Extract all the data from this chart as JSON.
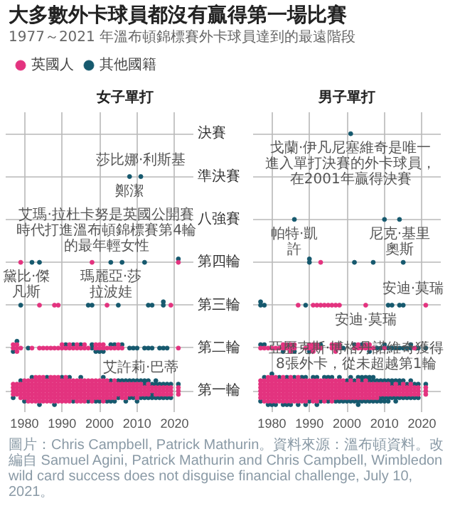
{
  "chart_data": [
    {
      "type": "scatter",
      "orientation": "horizontal",
      "title": "女子單打",
      "categories": [
        "決賽",
        "準決賽",
        "八強賽",
        "第四輪",
        "第三輪",
        "第二輪",
        "第一輪"
      ],
      "xlim": [
        1975,
        2025
      ],
      "xticks": [
        1980,
        1990,
        2000,
        2010,
        2020
      ],
      "grid": true,
      "legend": "top left",
      "marker": "circle",
      "series": [
        {
          "name": "英國人",
          "color": "#e3337f",
          "values": [
            1979,
            1998,
            2021,
            1984,
            1988,
            1989,
            2002,
            2019,
            1977,
            1977,
            1978,
            1978,
            1978,
            1979,
            1982,
            1984,
            1985,
            1986,
            1987,
            1988,
            1989,
            1990,
            1990,
            1991,
            1992,
            1992,
            1993,
            1994,
            1994,
            1995,
            1996,
            1996,
            1997,
            1999,
            1999,
            2000,
            2000,
            2001,
            2001,
            2002,
            2003,
            2004,
            2005,
            2005,
            2006,
            2021,
            1977,
            1977,
            1977,
            1977,
            1978,
            1978,
            1978,
            1978,
            1979,
            1979,
            1979,
            1979,
            1979,
            1980,
            1980,
            1980,
            1980,
            1980,
            1980,
            1981,
            1981,
            1981,
            1981,
            1981,
            1981,
            1981,
            1982,
            1982,
            1982,
            1982,
            1982,
            1982,
            1982,
            1983,
            1983,
            1983,
            1983,
            1983,
            1983,
            1983,
            1983,
            1984,
            1984,
            1984,
            1984,
            1984,
            1984,
            1984,
            1984,
            1985,
            1985,
            1985,
            1985,
            1985,
            1985,
            1985,
            1985,
            1986,
            1986,
            1986,
            1986,
            1986,
            1986,
            1986,
            1987,
            1987,
            1987,
            1987,
            1987,
            1987,
            1987,
            1987,
            1988,
            1988,
            1988,
            1988,
            1988,
            1988,
            1988,
            1988,
            1989,
            1989,
            1989,
            1989,
            1989,
            1989,
            1989,
            1989,
            1990,
            1990,
            1990,
            1990,
            1990,
            1990,
            1990,
            1991,
            1991,
            1991,
            1991,
            1991,
            1991,
            1991,
            1991,
            1992,
            1992,
            1992,
            1992,
            1992,
            1992,
            1992,
            1993,
            1993,
            1993,
            1993,
            1993,
            1993,
            1994,
            1994,
            1994,
            1994,
            1994,
            1994,
            1994,
            1995,
            1995,
            1995,
            1995,
            1995,
            1995,
            1995,
            1996,
            1996,
            1996,
            1996,
            1996,
            1996,
            1996,
            1997,
            1997,
            1997,
            1997,
            1997,
            1997,
            1998,
            1998,
            1998,
            1998,
            1998,
            1998,
            1998,
            1999,
            1999,
            1999,
            1999,
            1999,
            1999,
            2000,
            2000,
            2000,
            2000,
            2000,
            2000,
            2001,
            2001,
            2001,
            2001,
            2001,
            2001,
            2001,
            2002,
            2002,
            2002,
            2002,
            2002,
            2002,
            2003,
            2003,
            2003,
            2003,
            2003,
            2004,
            2004,
            2004,
            2004,
            2004,
            2004,
            2005,
            2005,
            2005,
            2005,
            2006,
            2006,
            2006,
            2006,
            2006,
            2007,
            2007,
            2007,
            2007,
            2007,
            2008,
            2008,
            2008,
            2008,
            2009,
            2009,
            2009,
            2009,
            2010,
            2010,
            2010,
            2010,
            2010,
            2011,
            2011,
            2011,
            2011,
            2012,
            2012,
            2012,
            2013,
            2013,
            2013,
            2013,
            2014,
            2014,
            2015,
            2015,
            2015,
            2016,
            2016,
            2016,
            2017,
            2017,
            2017,
            2018,
            2018,
            2018,
            2019,
            2019,
            2019,
            2021,
            2021,
            2021
          ],
          "x": [
            "第四輪",
            "第四輪",
            "第四輪",
            "第三輪",
            "第三輪",
            "第三輪",
            "第三輪",
            "第三輪",
            "第二輪",
            "第二輪",
            "第二輪",
            "第二輪",
            "第二輪",
            "第二輪",
            "第二輪",
            "第二輪",
            "第二輪",
            "第二輪",
            "第二輪",
            "第二輪",
            "第二輪",
            "第二輪",
            "第二輪",
            "第二輪",
            "第二輪",
            "第二輪",
            "第二輪",
            "第二輪",
            "第二輪",
            "第二輪",
            "第二輪",
            "第二輪",
            "第二輪",
            "第二輪",
            "第二輪",
            "第二輪",
            "第二輪",
            "第二輪",
            "第二輪",
            "第二輪",
            "第二輪",
            "第二輪",
            "第二輪",
            "第二輪",
            "第二輪",
            "第二輪",
            "第一輪",
            "第一輪",
            "第一輪",
            "第一輪",
            "第一輪",
            "第一輪",
            "第一輪",
            "第一輪",
            "第一輪",
            "第一輪",
            "第一輪",
            "第一輪",
            "第一輪",
            "第一輪",
            "第一輪",
            "第一輪",
            "第一輪",
            "第一輪",
            "第一輪",
            "第一輪",
            "第一輪",
            "第一輪",
            "第一輪",
            "第一輪",
            "第一輪",
            "第一輪",
            "第一輪",
            "第一輪",
            "第一輪",
            "第一輪",
            "第一輪",
            "第一輪",
            "第一輪",
            "第一輪",
            "第一輪",
            "第一輪",
            "第一輪",
            "第一輪",
            "第一輪",
            "第一輪",
            "第一輪",
            "第一輪",
            "第一輪",
            "第一輪",
            "第一輪",
            "第一輪",
            "第一輪",
            "第一輪",
            "第一輪",
            "第一輪",
            "第一輪",
            "第一輪",
            "第一輪",
            "第一輪",
            "第一輪",
            "第一輪",
            "第一輪",
            "第一輪",
            "第一輪",
            "第一輪",
            "第一輪",
            "第一輪",
            "第一輪",
            "第一輪",
            "第一輪",
            "第一輪",
            "第一輪",
            "第一輪",
            "第一輪",
            "第一輪",
            "第一輪",
            "第一輪",
            "第一輪",
            "第一輪",
            "第一輪",
            "第一輪",
            "第一輪",
            "第一輪",
            "第一輪",
            "第一輪",
            "第一輪",
            "第一輪",
            "第一輪",
            "第一輪",
            "第一輪",
            "第一輪",
            "第一輪",
            "第一輪",
            "第一輪",
            "第一輪",
            "第一輪",
            "第一輪",
            "第一輪",
            "第一輪",
            "第一輪",
            "第一輪",
            "第一輪",
            "第一輪",
            "第一輪",
            "第一輪",
            "第一輪",
            "第一輪",
            "第一輪",
            "第一輪",
            "第一輪",
            "第一輪",
            "第一輪",
            "第一輪",
            "第一輪",
            "第一輪",
            "第一輪",
            "第一輪",
            "第一輪",
            "第一輪",
            "第一輪",
            "第一輪",
            "第一輪",
            "第一輪",
            "第一輪",
            "第一輪",
            "第一輪",
            "第一輪",
            "第一輪",
            "第一輪",
            "第一輪",
            "第一輪",
            "第一輪",
            "第一輪",
            "第一輪",
            "第一輪",
            "第一輪",
            "第一輪",
            "第一輪",
            "第一輪",
            "第一輪",
            "第一輪",
            "第一輪",
            "第一輪",
            "第一輪",
            "第一輪",
            "第一輪",
            "第一輪",
            "第一輪",
            "第一輪",
            "第一輪",
            "第一輪",
            "第一輪",
            "第一輪",
            "第一輪",
            "第一輪",
            "第一輪",
            "第一輪",
            "第一輪",
            "第一輪",
            "第一輪",
            "第一輪",
            "第一輪",
            "第一輪",
            "第一輪",
            "第一輪",
            "第一輪",
            "第一輪",
            "第一輪",
            "第一輪",
            "第一輪",
            "第一輪",
            "第一輪",
            "第一輪",
            "第一輪",
            "第一輪",
            "第一輪",
            "第一輪",
            "第一輪",
            "第一輪",
            "第一輪",
            "第一輪",
            "第一輪",
            "第一輪",
            "第一輪",
            "第一輪",
            "第一輪",
            "第一輪",
            "第一輪",
            "第一輪",
            "第一輪",
            "第一輪",
            "第一輪",
            "第一輪",
            "第一輪",
            "第一輪",
            "第一輪",
            "第一輪",
            "第一輪",
            "第一輪",
            "第一輪",
            "第一輪",
            "第一輪",
            "第一輪",
            "第一輪",
            "第一輪",
            "第一輪",
            "第一輪",
            "第一輪",
            "第一輪",
            "第一輪",
            "第一輪",
            "第一輪",
            "第一輪",
            "第一輪",
            "第一輪",
            "第一輪",
            "第一輪",
            "第一輪",
            "第一輪",
            "第一輪",
            "第一輪",
            "第一輪",
            "第一輪",
            "第一輪",
            "第一輪",
            "第一輪",
            "第一輪",
            "第一輪",
            "第一輪",
            "第一輪",
            "第一輪",
            "第一輪",
            "第一輪",
            "第一輪",
            "第一輪",
            "第一輪",
            "第一輪",
            "第一輪",
            "第一輪",
            "第一輪",
            "第一輪",
            "第一輪",
            "第一輪",
            "第一輪",
            "第一輪",
            "第一輪",
            "第一輪",
            "第一輪",
            "第一輪"
          ]
        },
        {
          "name": "其他國籍",
          "color": "#16596e",
          "values": [
            2008,
            2011,
            1982,
            1984,
            2003,
            2006,
            2012,
            2021,
            1979,
            1997,
            1998,
            2005,
            2013,
            2014,
            2017,
            2017,
            1977,
            1978,
            1981,
            1991,
            1993,
            1995,
            1998,
            1998,
            1999,
            2000,
            2001,
            2003,
            2004,
            2006,
            2008,
            2009,
            2010,
            2012,
            2013,
            2014,
            2016,
            2017,
            2018,
            1977,
            1979,
            1980,
            1982,
            1984,
            1986,
            1988,
            1990,
            1992,
            1993,
            1995,
            1997,
            1999,
            2000,
            2001,
            2002,
            2003,
            2003,
            2004,
            2005,
            2005,
            2006,
            2007,
            2007,
            2008,
            2008,
            2009,
            2009,
            2010,
            2010,
            2011,
            2011,
            2012,
            2012,
            2012,
            2013,
            2013,
            2014,
            2014,
            2014,
            2015,
            2015,
            2015,
            2016,
            2016,
            2017,
            2017,
            2018,
            2018,
            2019,
            2019,
            2021
          ],
          "x": [
            "準決賽",
            "準決賽",
            "第四輪",
            "第四輪",
            "第四輪",
            "第四輪",
            "第四輪",
            "第四輪",
            "第三輪",
            "第三輪",
            "第三輪",
            "第三輪",
            "第三輪",
            "第三輪",
            "第三輪",
            "第三輪",
            "第二輪",
            "第二輪",
            "第二輪",
            "第二輪",
            "第二輪",
            "第二輪",
            "第二輪",
            "第二輪",
            "第二輪",
            "第二輪",
            "第二輪",
            "第二輪",
            "第二輪",
            "第二輪",
            "第二輪",
            "第二輪",
            "第二輪",
            "第二輪",
            "第二輪",
            "第二輪",
            "第二輪",
            "第二輪",
            "第二輪",
            "第一輪",
            "第一輪",
            "第一輪",
            "第一輪",
            "第一輪",
            "第一輪",
            "第一輪",
            "第一輪",
            "第一輪",
            "第一輪",
            "第一輪",
            "第一輪",
            "第一輪",
            "第一輪",
            "第一輪",
            "第一輪",
            "第一輪",
            "第一輪",
            "第一輪",
            "第一輪",
            "第一輪",
            "第一輪",
            "第一輪",
            "第一輪",
            "第一輪",
            "第一輪",
            "第一輪",
            "第一輪",
            "第一輪",
            "第一輪",
            "第一輪",
            "第一輪",
            "第一輪",
            "第一輪",
            "第一輪",
            "第一輪",
            "第一輪",
            "第一輪",
            "第一輪",
            "第一輪",
            "第一輪",
            "第一輪",
            "第一輪",
            "第一輪",
            "第一輪",
            "第一輪",
            "第一輪",
            "第一輪",
            "第一輪",
            "第一輪",
            "第一輪",
            "第一輪"
          ]
        }
      ],
      "annotations": [
        "大多數外卡球員都沒有贏得第一場比賽",
        "1977～2021 年溫布頓錦標賽外卡球員達到的最遠階段",
        {
          "text": "鄭潔",
          "x": 2008,
          "y": "準決賽"
        },
        {
          "text": "莎比娜·利斯基",
          "x": 2011,
          "y": "準決賽"
        },
        {
          "text": "艾瑪·拉杜卡努是英國公開賽時代打進溫布頓錦標賽第4輪的最年輕女性",
          "x": 2021,
          "y": "第四輪"
        },
        {
          "text": "黛比·傑凡斯",
          "x": 1979,
          "y": "第四輪"
        },
        {
          "text": "瑪麗亞·莎拉波娃",
          "x": 2003,
          "y": "第四輪"
        },
        {
          "text": "艾許莉·巴蒂",
          "x": 2011,
          "y": "第一輪"
        },
        "圖片：Chris Campbell, Patrick Mathurin。資料來源：溫布頓資料。改編自 Samuel Agini, Patrick Mathurin and Chris Campbell, Wimbledon wild card success does not disguise financial challenge, July 10, 2021。"
      ]
    },
    {
      "type": "scatter",
      "orientation": "horizontal",
      "title": "男子單打",
      "categories": [
        "決賽",
        "準決賽",
        "八強賽",
        "第四輪",
        "第三輪",
        "第二輪",
        "第一輪"
      ],
      "xlim": [
        1975,
        2025
      ],
      "xticks": [
        1980,
        1990,
        2000,
        2010,
        2020
      ],
      "grid": true,
      "marker": "circle",
      "tick_labels": "x",
      "series": [
        {
          "color": "#e3337f",
          "values": [
            1993,
            1987,
            1991,
            1992,
            1993,
            1994,
            1995,
            1996,
            1997,
            1998,
            2005,
            2021,
            1977,
            1978,
            1979,
            1980,
            1981,
            1982,
            1983,
            1983,
            1984,
            1984,
            1985,
            1985,
            1985,
            1986,
            1986,
            1989,
            1990,
            1990,
            1991,
            1991,
            1991,
            1992,
            1992,
            1993,
            1996,
            1996,
            1997,
            1997,
            1997,
            1998,
            1998,
            2002,
            2003,
            2003,
            2004,
            2005,
            2005,
            2006,
            2006,
            2007,
            2010,
            2018,
            1977,
            1977,
            1977,
            1977,
            1977,
            1977,
            1978,
            1978,
            1978,
            1978,
            1978,
            1978,
            1978,
            1979,
            1979,
            1979,
            1979,
            1979,
            1979,
            1979,
            1979,
            1980,
            1980,
            1980,
            1980,
            1980,
            1980,
            1980,
            1980,
            1981,
            1981,
            1981,
            1981,
            1981,
            1981,
            1981,
            1981,
            1982,
            1982,
            1982,
            1982,
            1982,
            1982,
            1982,
            1983,
            1983,
            1983,
            1983,
            1983,
            1983,
            1983,
            1983,
            1984,
            1984,
            1984,
            1984,
            1984,
            1984,
            1984,
            1985,
            1985,
            1985,
            1985,
            1985,
            1985,
            1985,
            1985,
            1986,
            1986,
            1986,
            1986,
            1986,
            1986,
            1986,
            1987,
            1987,
            1987,
            1987,
            1987,
            1987,
            1987,
            1987,
            1988,
            1988,
            1988,
            1988,
            1988,
            1988,
            1988,
            1989,
            1989,
            1989,
            1989,
            1989,
            1989,
            1989,
            1990,
            1990,
            1990,
            1990,
            1990,
            1990,
            1991,
            1991,
            1991,
            1991,
            1991,
            1991,
            1991,
            1992,
            1992,
            1992,
            1992,
            1992,
            1992,
            1992,
            1993,
            1993,
            1993,
            1993,
            1993,
            1993,
            1994,
            1994,
            1994,
            1994,
            1994,
            1994,
            1994,
            1995,
            1995,
            1995,
            1995,
            1995,
            1995,
            1996,
            1996,
            1996,
            1996,
            1996,
            1996,
            1996,
            1997,
            1997,
            1997,
            1997,
            1997,
            1997,
            1998,
            1998,
            1998,
            1998,
            1998,
            1998,
            1999,
            1999,
            1999,
            1999,
            1999,
            1999,
            2000,
            2000,
            2000,
            2000,
            2000,
            2001,
            2001,
            2001,
            2001,
            2001,
            2001,
            2002,
            2002,
            2002,
            2002,
            2002,
            2003,
            2003,
            2003,
            2003,
            2003,
            2003,
            2004,
            2004,
            2004,
            2004,
            2004,
            2005,
            2005,
            2005,
            2005,
            2005,
            2005,
            2006,
            2006,
            2006,
            2006,
            2006,
            2007,
            2007,
            2007,
            2007,
            2007,
            2008,
            2008,
            2008,
            2008,
            2008,
            2009,
            2009,
            2009,
            2009,
            2010,
            2010,
            2010,
            2010,
            2011,
            2011,
            2011,
            2011,
            2012,
            2012,
            2012,
            2013,
            2013,
            2013,
            2013,
            2014,
            2014,
            2014,
            2015,
            2015,
            2015,
            2015,
            2016,
            2016,
            2016,
            2017,
            2017,
            2017,
            2017,
            2018,
            2018,
            2018,
            2019,
            2019,
            2019,
            2021,
            2021,
            2021
          ],
          "x": [
            "第四輪",
            "第三輪",
            "第三輪",
            "第三輪",
            "第三輪",
            "第三輪",
            "第三輪",
            "第三輪",
            "第三輪",
            "第三輪",
            "第三輪",
            "第三輪",
            "第二輪",
            "第二輪",
            "第二輪",
            "第二輪",
            "第二輪",
            "第二輪",
            "第二輪",
            "第二輪",
            "第二輪",
            "第二輪",
            "第二輪",
            "第二輪",
            "第二輪",
            "第二輪",
            "第二輪",
            "第二輪",
            "第二輪",
            "第二輪",
            "第二輪",
            "第二輪",
            "第二輪",
            "第二輪",
            "第二輪",
            "第二輪",
            "第二輪",
            "第二輪",
            "第二輪",
            "第二輪",
            "第二輪",
            "第二輪",
            "第二輪",
            "第二輪",
            "第二輪",
            "第二輪",
            "第二輪",
            "第二輪",
            "第二輪",
            "第二輪",
            "第二輪",
            "第二輪",
            "第二輪",
            "第二輪",
            "第一輪",
            "第一輪",
            "第一輪",
            "第一輪",
            "第一輪",
            "第一輪",
            "第一輪",
            "第一輪",
            "第一輪",
            "第一輪",
            "第一輪",
            "第一輪",
            "第一輪",
            "第一輪",
            "第一輪",
            "第一輪",
            "第一輪",
            "第一輪",
            "第一輪",
            "第一輪",
            "第一輪",
            "第一輪",
            "第一輪",
            "第一輪",
            "第一輪",
            "第一輪",
            "第一輪",
            "第一輪",
            "第一輪",
            "第一輪",
            "第一輪",
            "第一輪",
            "第一輪",
            "第一輪",
            "第一輪",
            "第一輪",
            "第一輪",
            "第一輪",
            "第一輪",
            "第一輪",
            "第一輪",
            "第一輪",
            "第一輪",
            "第一輪",
            "第一輪",
            "第一輪",
            "第一輪",
            "第一輪",
            "第一輪",
            "第一輪",
            "第一輪",
            "第一輪",
            "第一輪",
            "第一輪",
            "第一輪",
            "第一輪",
            "第一輪",
            "第一輪",
            "第一輪",
            "第一輪",
            "第一輪",
            "第一輪",
            "第一輪",
            "第一輪",
            "第一輪",
            "第一輪",
            "第一輪",
            "第一輪",
            "第一輪",
            "第一輪",
            "第一輪",
            "第一輪",
            "第一輪",
            "第一輪",
            "第一輪",
            "第一輪",
            "第一輪",
            "第一輪",
            "第一輪",
            "第一輪",
            "第一輪",
            "第一輪",
            "第一輪",
            "第一輪",
            "第一輪",
            "第一輪",
            "第一輪",
            "第一輪",
            "第一輪",
            "第一輪",
            "第一輪",
            "第一輪",
            "第一輪",
            "第一輪",
            "第一輪",
            "第一輪",
            "第一輪",
            "第一輪",
            "第一輪",
            "第一輪",
            "第一輪",
            "第一輪",
            "第一輪",
            "第一輪",
            "第一輪",
            "第一輪",
            "第一輪",
            "第一輪",
            "第一輪",
            "第一輪",
            "第一輪",
            "第一輪",
            "第一輪",
            "第一輪",
            "第一輪",
            "第一輪",
            "第一輪",
            "第一輪",
            "第一輪",
            "第一輪",
            "第一輪",
            "第一輪",
            "第一輪",
            "第一輪",
            "第一輪",
            "第一輪",
            "第一輪",
            "第一輪",
            "第一輪",
            "第一輪",
            "第一輪",
            "第一輪",
            "第一輪",
            "第一輪",
            "第一輪",
            "第一輪",
            "第一輪",
            "第一輪",
            "第一輪",
            "第一輪",
            "第一輪",
            "第一輪",
            "第一輪",
            "第一輪",
            "第一輪",
            "第一輪",
            "第一輪",
            "第一輪",
            "第一輪",
            "第一輪",
            "第一輪",
            "第一輪",
            "第一輪",
            "第一輪",
            "第一輪",
            "第一輪",
            "第一輪",
            "第一輪",
            "第一輪",
            "第一輪",
            "第一輪",
            "第一輪",
            "第一輪",
            "第一輪",
            "第一輪",
            "第一輪",
            "第一輪",
            "第一輪",
            "第一輪",
            "第一輪",
            "第一輪",
            "第一輪",
            "第一輪",
            "第一輪",
            "第一輪",
            "第一輪",
            "第一輪",
            "第一輪",
            "第一輪",
            "第一輪",
            "第一輪",
            "第一輪",
            "第一輪",
            "第一輪",
            "第一輪",
            "第一輪",
            "第一輪",
            "第一輪",
            "第一輪",
            "第一輪",
            "第一輪",
            "第一輪",
            "第一輪",
            "第一輪",
            "第一輪",
            "第一輪",
            "第一輪",
            "第一輪",
            "第一輪",
            "第一輪",
            "第一輪",
            "第一輪",
            "第一輪",
            "第一輪",
            "第一輪",
            "第一輪",
            "第一輪",
            "第一輪",
            "第一輪",
            "第一輪",
            "第一輪",
            "第一輪",
            "第一輪",
            "第一輪",
            "第一輪",
            "第一輪",
            "第一輪",
            "第一輪",
            "第一輪",
            "第一輪",
            "第一輪",
            "第一輪",
            "第一輪",
            "第一輪",
            "第一輪",
            "第一輪",
            "第一輪",
            "第一輪",
            "第一輪",
            "第一輪",
            "第一輪",
            "第一輪",
            "第一輪",
            "第一輪",
            "第一輪",
            "第一輪",
            "第一輪",
            "第一輪",
            "第一輪",
            "第一輪",
            "第一輪",
            "第一輪",
            "第一輪",
            "第一輪",
            "第一輪",
            "第一輪",
            "第一輪",
            "第一輪",
            "第一輪",
            "第一輪"
          ]
        },
        {
          "color": "#16596e",
          "values": [
            2001,
            1986,
            2010,
            2014,
            1990,
            1990,
            2002,
            2007,
            2015,
            1977,
            1977,
            1978,
            1989,
            2011,
            2012,
            2014,
            2015,
            1977,
            1978,
            1983,
            1986,
            1990,
            1993,
            1999,
            2002,
            2004,
            2006,
            2008,
            2009,
            2010,
            2011,
            2012,
            2013,
            2014,
            2015,
            2016,
            2017,
            2017,
            2019,
            2021,
            1977,
            1978,
            1979,
            1980,
            1980,
            1981,
            1982,
            1983,
            1984,
            1984,
            1985,
            1986,
            1987,
            1988,
            1989,
            1989,
            1990,
            1991,
            1992,
            1992,
            1993,
            1994,
            1995,
            1995,
            1996,
            1997,
            1998,
            1998,
            1999,
            2000,
            2000,
            2001,
            2001,
            2002,
            2002,
            2003,
            2003,
            2003,
            2004,
            2004,
            2004,
            2005,
            2005,
            2006,
            2006,
            2006,
            2007,
            2007,
            2007,
            2008,
            2008,
            2009,
            2009,
            2009,
            2010,
            2010,
            2010,
            2011,
            2011,
            2011,
            2012,
            2012,
            2012,
            2013,
            2013,
            2013,
            2014,
            2014,
            2014,
            2015,
            2015,
            2016,
            2016,
            2017,
            2017,
            2018,
            2018,
            2019,
            2019,
            2021
          ],
          "x": [
            "決賽",
            "八強賽",
            "八強賽",
            "八強賽",
            "第四輪",
            "第四輪",
            "第四輪",
            "第四輪",
            "第四輪",
            "第三輪",
            "第三輪",
            "第三輪",
            "第三輪",
            "第三輪",
            "第三輪",
            "第三輪",
            "第三輪",
            "第二輪",
            "第二輪",
            "第二輪",
            "第二輪",
            "第二輪",
            "第二輪",
            "第二輪",
            "第二輪",
            "第二輪",
            "第二輪",
            "第二輪",
            "第二輪",
            "第二輪",
            "第二輪",
            "第二輪",
            "第二輪",
            "第二輪",
            "第二輪",
            "第二輪",
            "第二輪",
            "第二輪",
            "第二輪",
            "第二輪",
            "第一輪",
            "第一輪",
            "第一輪",
            "第一輪",
            "第一輪",
            "第一輪",
            "第一輪",
            "第一輪",
            "第一輪",
            "第一輪",
            "第一輪",
            "第一輪",
            "第一輪",
            "第一輪",
            "第一輪",
            "第一輪",
            "第一輪",
            "第一輪",
            "第一輪",
            "第一輪",
            "第一輪",
            "第一輪",
            "第一輪",
            "第一輪",
            "第一輪",
            "第一輪",
            "第一輪",
            "第一輪",
            "第一輪",
            "第一輪",
            "第一輪",
            "第一輪",
            "第一輪",
            "第一輪",
            "第一輪",
            "第一輪",
            "第一輪",
            "第一輪",
            "第一輪",
            "第一輪",
            "第一輪",
            "第一輪",
            "第一輪",
            "第一輪",
            "第一輪",
            "第一輪",
            "第一輪",
            "第一輪",
            "第一輪",
            "第一輪",
            "第一輪",
            "第一輪",
            "第一輪",
            "第一輪",
            "第一輪",
            "第一輪",
            "第一輪",
            "第一輪",
            "第一輪",
            "第一輪",
            "第一輪",
            "第一輪",
            "第一輪",
            "第一輪",
            "第一輪",
            "第一輪",
            "第一輪",
            "第一輪",
            "第一輪",
            "第一輪",
            "第一輪",
            "第一輪",
            "第一輪",
            "第一輪",
            "第一輪",
            "第一輪",
            "第一輪",
            "第一輪",
            "第一輪",
            "第一輪"
          ]
        }
      ],
      "annotations": [
        {
          "text": "戈蘭·伊凡尼塞維奇是唯一進入單打決賽的外卡球員，在2001年贏得決賽",
          "x": 2001,
          "y": "決賽"
        },
        {
          "text": "帕特·凱許",
          "x": 1986,
          "y": "八強賽"
        },
        {
          "text": "尼克·基里奧斯",
          "x": 2014,
          "y": "八強賽"
        },
        {
          "text": "安迪·莫瑞",
          "x": 2005,
          "y": "第三輪"
        },
        {
          "text": "安迪·莫瑞",
          "x": 2021,
          "y": "第三輪"
        },
        {
          "text": "亞歷克斯·博格丹諾維奇獲得8張外卡，從未超越第1輪",
          "x": 2005,
          "y": "第一輪"
        }
      ]
    }
  ]
}
